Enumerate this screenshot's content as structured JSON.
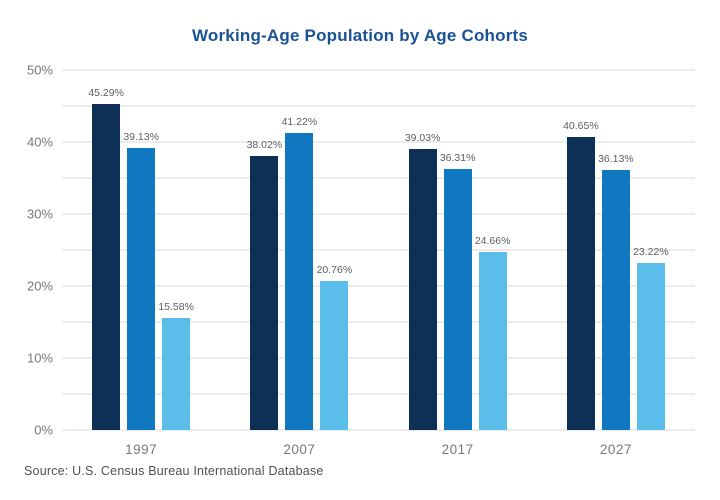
{
  "title": "Working-Age Population by Age Cohorts",
  "source_note": "Source: U.S. Census Bureau International Database",
  "colors": {
    "background": "#ffffff",
    "title_text": "#1a5296",
    "gridline": "#d9d9d9",
    "axis_tick_text": "#75787d",
    "data_label_text": "#5a5e64",
    "source_text": "#4d5156"
  },
  "chart_data": {
    "type": "bar",
    "title": "Working-Age Population by Age Cohorts",
    "xlabel": "",
    "ylabel": "",
    "ylim": [
      0,
      50
    ],
    "grid_step": 5,
    "tick_step": 10,
    "tick_suffix": "%",
    "grid": "on",
    "legend": "none",
    "value_label_format": "0.00%",
    "categories": [
      "1997",
      "2007",
      "2017",
      "2027"
    ],
    "series": [
      {
        "name": "series-1",
        "color": "#0e3056",
        "values": [
          45.29,
          38.02,
          39.03,
          40.65
        ]
      },
      {
        "name": "series-2",
        "color": "#0f78c0",
        "values": [
          39.13,
          41.22,
          36.31,
          36.13
        ]
      },
      {
        "name": "series-3",
        "color": "#5bbde9",
        "values": [
          15.58,
          20.76,
          24.66,
          23.22
        ]
      }
    ]
  }
}
